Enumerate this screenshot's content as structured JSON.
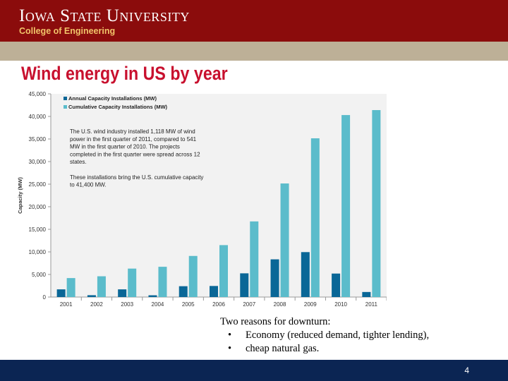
{
  "header": {
    "university": "Iowa State University",
    "college": "College of Engineering"
  },
  "slide": {
    "title": "Wind energy in US by year",
    "page_number": "4"
  },
  "reasons": {
    "heading": "Two reasons for downturn:",
    "items": [
      "Economy (reduced demand, tighter lending),",
      "cheap natural gas."
    ]
  },
  "colors": {
    "header_bg": "#8b0c0c",
    "gold_bar": "#bdb097",
    "title_red": "#c8102e",
    "footer_navy": "#0b2553",
    "annual_bar": "#0a6797",
    "cumulative_bar": "#5bbccb"
  },
  "chart_data": {
    "type": "bar",
    "categories": [
      "2001",
      "2002",
      "2003",
      "2004",
      "2005",
      "2006",
      "2007",
      "2008",
      "2009",
      "2010",
      "2011"
    ],
    "series": [
      {
        "name": "Annual Capacity Installations (MW)",
        "values": [
          1700,
          410,
          1700,
          390,
          2400,
          2450,
          5250,
          8350,
          9950,
          5200,
          1118
        ]
      },
      {
        "name": "Cumulative Capacity Installations (MW)",
        "values": [
          4200,
          4600,
          6300,
          6700,
          9100,
          11500,
          16750,
          25150,
          35150,
          40300,
          41400
        ]
      }
    ],
    "ylabel": "Capacity (MW)",
    "xlabel": "",
    "ylim": [
      0,
      45000
    ],
    "yticks": [
      "0",
      "5,000",
      "10,000",
      "15,000",
      "20,000",
      "25,000",
      "30,000",
      "35,000",
      "40,000",
      "45,000"
    ],
    "grid": false,
    "legend_position": "top-left",
    "annotation": [
      "The U.S. wind industry installed 1,118 MW of wind",
      "power in the first quarter of 2011, compared to 541",
      "MW in the first quarter of 2010. The projects",
      "completed in the first quarter were spread across 12",
      "states.",
      "",
      "These installations bring the U.S. cumulative capacity",
      "to 41,400 MW."
    ]
  }
}
